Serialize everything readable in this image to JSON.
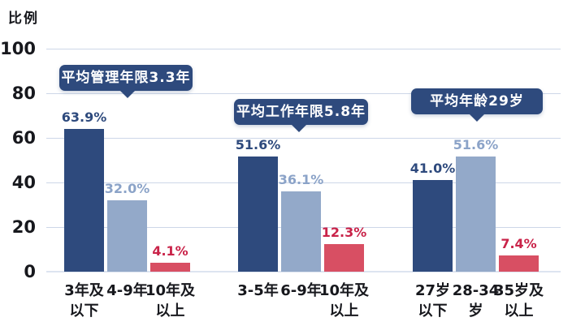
{
  "chart_title": "比例",
  "colors": {
    "background": "#ffffff",
    "axis_text": "#17181d",
    "grid": "#cdd7e8",
    "baseline": "#dde4f0",
    "callout_bg": "#2e4a7d",
    "callout_text": "#ffffff",
    "series": {
      "dark": "#2e4a7d",
      "light": "#93a9c9",
      "red": "#d84f63"
    },
    "value_labels": {
      "dark": "#2e4a7d",
      "light": "#8ba3c8",
      "red": "#c92349"
    }
  },
  "chart_data": {
    "type": "bar",
    "title": "比例",
    "ylabel": "比例",
    "xlabel": "",
    "ylim": [
      0,
      100
    ],
    "yticks": [
      0,
      20,
      40,
      60,
      80,
      100
    ],
    "grid": true,
    "legend": false,
    "groups": [
      {
        "annotation": "平均管理年限3.3年",
        "bars": [
          {
            "category": "3年及以下",
            "category_lines": [
              "3年及",
              "以下"
            ],
            "value": 63.9,
            "label": "63.9%",
            "series": "dark"
          },
          {
            "category": "4-9年",
            "category_lines": [
              "4-9年"
            ],
            "value": 32.0,
            "label": "32.0%",
            "series": "light"
          },
          {
            "category": "10年及以上",
            "category_lines": [
              "10年及",
              "以上"
            ],
            "value": 4.1,
            "label": "4.1%",
            "series": "red"
          }
        ]
      },
      {
        "annotation": "平均工作年限5.8年",
        "bars": [
          {
            "category": "3-5年",
            "category_lines": [
              "3-5年"
            ],
            "value": 51.6,
            "label": "51.6%",
            "series": "dark"
          },
          {
            "category": "6-9年",
            "category_lines": [
              "6-9年"
            ],
            "value": 36.1,
            "label": "36.1%",
            "series": "light"
          },
          {
            "category": "10年及以上",
            "category_lines": [
              "10年及",
              "以上"
            ],
            "value": 12.3,
            "label": "12.3%",
            "series": "red"
          }
        ]
      },
      {
        "annotation": "平均年龄29岁",
        "bars": [
          {
            "category": "27岁以下",
            "category_lines": [
              "27岁",
              "以下"
            ],
            "value": 41.0,
            "label": "41.0%",
            "series": "dark"
          },
          {
            "category": "28-34岁",
            "category_lines": [
              "28-34",
              "岁"
            ],
            "value": 51.6,
            "label": "51.6%",
            "series": "light"
          },
          {
            "category": "35岁及以上",
            "category_lines": [
              "35岁及",
              "以上"
            ],
            "value": 7.4,
            "label": "7.4%",
            "series": "red"
          }
        ]
      }
    ]
  }
}
